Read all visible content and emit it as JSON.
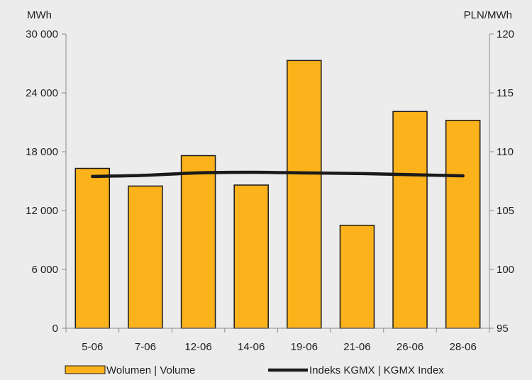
{
  "chart_data": {
    "type": "bar",
    "left_unit": "MWh",
    "right_unit": "PLN/MWh",
    "categories": [
      "5-06",
      "7-06",
      "12-06",
      "14-06",
      "19-06",
      "21-06",
      "26-06",
      "28-06"
    ],
    "series": [
      {
        "name": "Wolumen  |  Volume",
        "type": "bar",
        "axis": "left",
        "color": "#fbb21b",
        "values": [
          16300,
          14500,
          17600,
          14600,
          27300,
          10500,
          22100,
          21200
        ]
      },
      {
        "name": "Indeks KGMX  |  KGMX Index",
        "type": "line",
        "axis": "right",
        "color": "#1a1a1a",
        "values": [
          107.9,
          108.0,
          108.2,
          108.25,
          108.2,
          108.15,
          108.05,
          107.95
        ]
      }
    ],
    "left_axis": {
      "min": 0,
      "max": 30000,
      "ticks": [
        0,
        6000,
        12000,
        18000,
        24000,
        30000
      ],
      "tick_labels": [
        "0",
        "6 000",
        "12 000",
        "18 000",
        "24 000",
        "30 000"
      ]
    },
    "right_axis": {
      "min": 95,
      "max": 120,
      "ticks": [
        95,
        100,
        105,
        110,
        115,
        120
      ],
      "tick_labels": [
        "95",
        "100",
        "105",
        "110",
        "115",
        "120"
      ]
    },
    "grid": false,
    "legend_position": "bottom"
  }
}
